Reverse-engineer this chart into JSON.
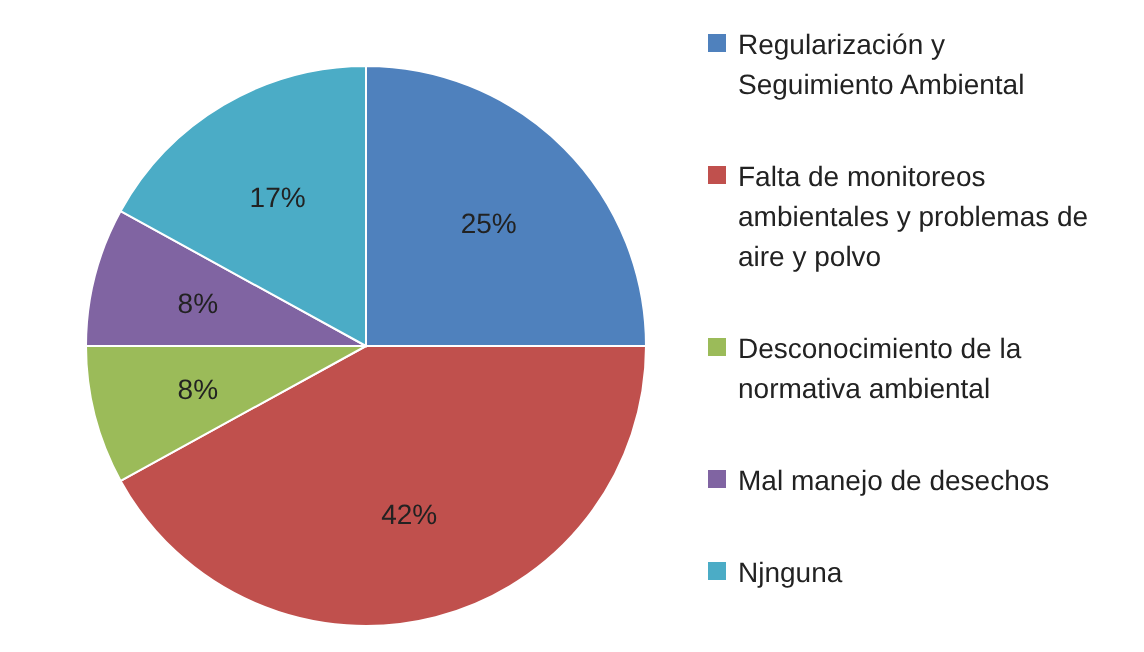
{
  "chart_data": {
    "type": "pie",
    "categories": [
      "Regularización y Seguimiento Ambiental",
      "Falta de monitoreos ambientales y problemas de aire y polvo",
      "Desconocimiento de la normativa ambiental",
      "Mal manejo de desechos",
      "Njnguna"
    ],
    "values": [
      25,
      42,
      8,
      8,
      17
    ],
    "value_labels": [
      "25%",
      "42%",
      "8%",
      "8%",
      "17%"
    ],
    "colors": [
      "#4f81bd",
      "#c0504d",
      "#9bbb59",
      "#8064a2",
      "#4bacc6"
    ],
    "legend": "right"
  }
}
